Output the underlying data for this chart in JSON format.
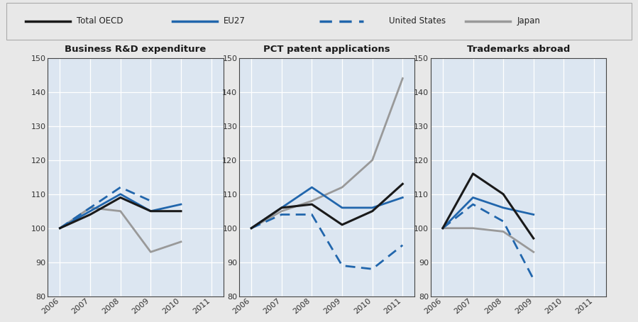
{
  "years": [
    2006,
    2007,
    2008,
    2009,
    2010,
    2011
  ],
  "charts": [
    {
      "title": "Business R&D expenditure",
      "series": {
        "Total OECD": [
          100,
          104,
          109,
          105,
          105,
          null
        ],
        "EU27": [
          100,
          105,
          110,
          105,
          107,
          null
        ],
        "United States": [
          100,
          106,
          112,
          108,
          null,
          null
        ],
        "Japan": [
          100,
          106,
          105,
          93,
          96,
          null
        ]
      }
    },
    {
      "title": "PCT patent applications",
      "series": {
        "Total OECD": [
          100,
          106,
          107,
          101,
          105,
          113
        ],
        "EU27": [
          100,
          106,
          112,
          106,
          106,
          109
        ],
        "United States": [
          100,
          104,
          104,
          89,
          88,
          95
        ],
        "Japan": [
          100,
          105,
          108,
          112,
          120,
          144
        ]
      }
    },
    {
      "title": "Trademarks abroad",
      "series": {
        "Total OECD": [
          100,
          116,
          110,
          97,
          null,
          null
        ],
        "EU27": [
          100,
          109,
          106,
          104,
          null,
          null
        ],
        "United States": [
          100,
          107,
          102,
          85,
          null,
          null
        ],
        "Japan": [
          100,
          100,
          99,
          93,
          null,
          null
        ]
      }
    }
  ],
  "series_order": [
    "Japan",
    "United States",
    "EU27",
    "Total OECD"
  ],
  "series_styles": {
    "Total OECD": {
      "color": "#1a1a1a",
      "lw": 2.2,
      "linestyle": "-",
      "dashes": null
    },
    "EU27": {
      "color": "#2166ac",
      "lw": 2.0,
      "linestyle": "-",
      "dashes": null
    },
    "United States": {
      "color": "#2166ac",
      "lw": 2.0,
      "linestyle": "--",
      "dashes": [
        5,
        3
      ]
    },
    "Japan": {
      "color": "#999999",
      "lw": 2.0,
      "linestyle": "-",
      "dashes": null
    }
  },
  "legend_labels": [
    "Total OECD",
    "EU27",
    "United States",
    "Japan"
  ],
  "ylim": [
    80,
    150
  ],
  "yticks": [
    80,
    90,
    100,
    110,
    120,
    130,
    140,
    150
  ],
  "xticks": [
    2006,
    2007,
    2008,
    2009,
    2010,
    2011
  ],
  "plot_bg": "#dce6f1",
  "fig_bg": "#e8e8e8",
  "grid_color": "#ffffff",
  "tick_label_color": "#333333",
  "title_color": "#1a1a1a"
}
